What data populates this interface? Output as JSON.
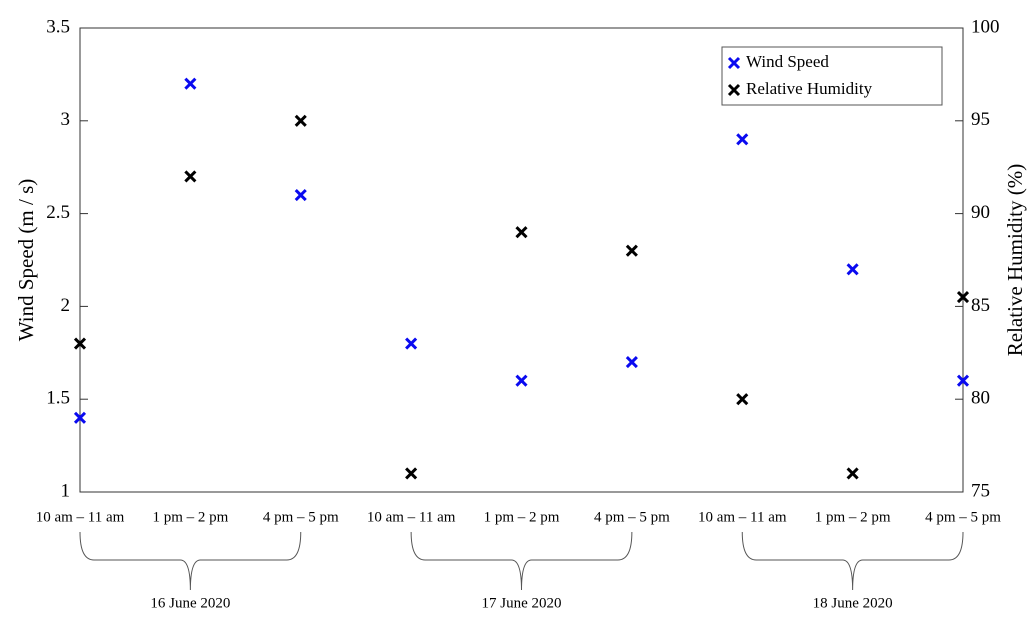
{
  "chart_data": {
    "type": "scatter",
    "y_label": "Wind Speed (m / s)",
    "y2_label": "Relative Humidity (%)",
    "categories": [
      "10 am – 11 am",
      "1 pm – 2 pm",
      "4 pm – 5 pm",
      "10 am – 11 am",
      "1 pm – 2 pm",
      "4 pm – 5 pm",
      "10 am – 11 am",
      "1 pm – 2 pm",
      "4 pm – 5 pm"
    ],
    "groups": [
      "16 June 2020",
      "17 June 2020",
      "18 June 2020"
    ],
    "series": [
      {
        "name": "Wind Speed",
        "color": "#0a0af0",
        "values": [
          1.4,
          3.2,
          2.6,
          1.8,
          1.6,
          1.7,
          2.9,
          2.2,
          1.6
        ]
      },
      {
        "name": "Relative Humidity",
        "color": "#000000",
        "axis": "y2",
        "values": [
          83,
          92,
          95,
          76,
          89,
          88,
          80,
          76,
          85.5
        ]
      }
    ],
    "ylim": [
      1,
      3.5
    ],
    "yticks": [
      1,
      1.5,
      2,
      2.5,
      3,
      3.5
    ],
    "y2lim": [
      75,
      100
    ],
    "y2ticks": [
      75,
      80,
      85,
      90,
      95,
      100
    ],
    "legend": "upper-right"
  }
}
